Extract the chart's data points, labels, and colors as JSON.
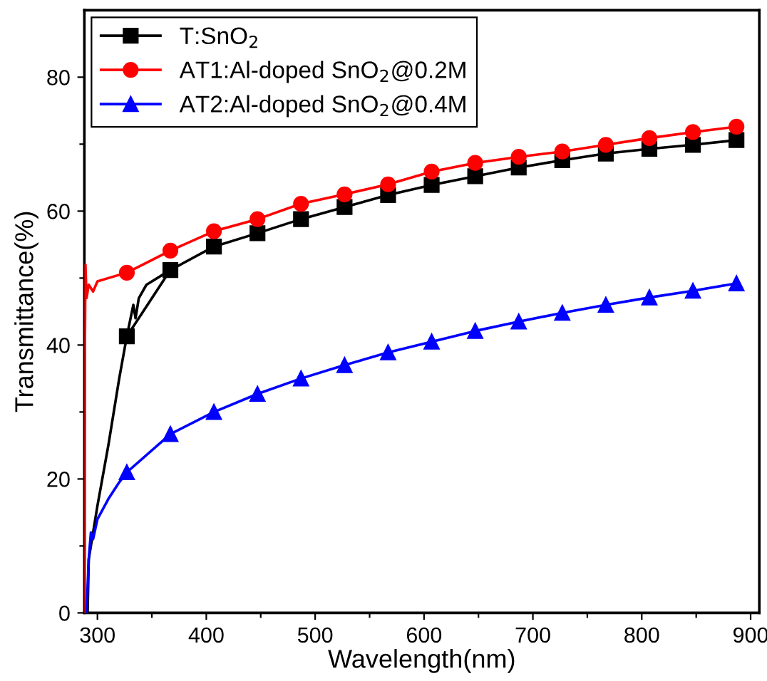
{
  "chart_data": {
    "type": "line",
    "xlabel": "Wavelength(nm)",
    "ylabel": "Transmittance(%)",
    "xlim": [
      288,
      908
    ],
    "ylim": [
      0,
      90
    ],
    "xticks": [
      300,
      {
        "value": 350,
        "label": null
      },
      400,
      {
        "value": 450,
        "label": null
      },
      500,
      {
        "value": 550,
        "label": null
      },
      600,
      {
        "value": 650,
        "label": null
      },
      700,
      {
        "value": 750,
        "label": null
      },
      800,
      {
        "value": 850,
        "label": null
      },
      900
    ],
    "yticks": [
      0,
      {
        "value": 10,
        "label": null
      },
      20,
      {
        "value": 30,
        "label": null
      },
      40,
      {
        "value": 50,
        "label": null
      },
      60,
      {
        "value": 70,
        "label": null
      },
      80
    ],
    "grid": false,
    "legend": "top left",
    "line_style": "solid",
    "series": [
      {
        "color": "#000000",
        "marker": "none",
        "x": [
          291,
          292,
          300,
          310,
          320,
          327,
          333,
          335,
          338,
          345,
          367
        ],
        "values": [
          0,
          8,
          16,
          25,
          35,
          41.3,
          46,
          44,
          47,
          49,
          51.2
        ]
      },
      {
        "color": "#ff0000",
        "marker": "none",
        "x": [
          288.3,
          288.5,
          289,
          290,
          292,
          296,
          300,
          310,
          327
        ],
        "values": [
          0,
          40,
          52,
          47,
          49,
          48,
          49.5,
          50,
          50.8
        ]
      },
      {
        "color": "#0000ff",
        "marker": "none",
        "x": [
          290,
          292,
          294,
          296,
          300,
          310,
          320,
          327
        ],
        "values": [
          0,
          8,
          12,
          11,
          14,
          17,
          19.5,
          21
        ]
      },
      {
        "name": "T:SnO$_{2}$",
        "color": "#000000",
        "marker": "square",
        "x": [
          327,
          367,
          407,
          447,
          487,
          527,
          567,
          607,
          647,
          687,
          727,
          767,
          807,
          847,
          887
        ],
        "values": [
          41.3,
          51.2,
          54.7,
          56.7,
          58.8,
          60.6,
          62.4,
          63.9,
          65.2,
          66.5,
          67.6,
          68.6,
          69.3,
          69.9,
          70.6
        ]
      },
      {
        "name": "AT1:Al-doped SnO$_{2}$@0.2M",
        "color": "#ff0000",
        "marker": "circle",
        "x": [
          327,
          367,
          407,
          447,
          487,
          527,
          567,
          607,
          647,
          687,
          727,
          767,
          807,
          847,
          887
        ],
        "values": [
          50.8,
          54.1,
          57.0,
          58.8,
          61.1,
          62.5,
          64.0,
          65.9,
          67.2,
          68.1,
          68.9,
          69.9,
          70.9,
          71.8,
          72.6
        ]
      },
      {
        "name": "AT2:Al-doped SnO$_{2}$@0.4M",
        "color": "#0000ff",
        "marker": "triangle",
        "x": [
          327,
          367,
          407,
          447,
          487,
          527,
          567,
          607,
          647,
          687,
          727,
          767,
          807,
          847,
          887
        ],
        "values": [
          21.0,
          26.7,
          30.0,
          32.7,
          35.0,
          37.0,
          38.9,
          40.5,
          42.1,
          43.5,
          44.8,
          46.0,
          47.1,
          48.1,
          49.2
        ]
      }
    ]
  }
}
